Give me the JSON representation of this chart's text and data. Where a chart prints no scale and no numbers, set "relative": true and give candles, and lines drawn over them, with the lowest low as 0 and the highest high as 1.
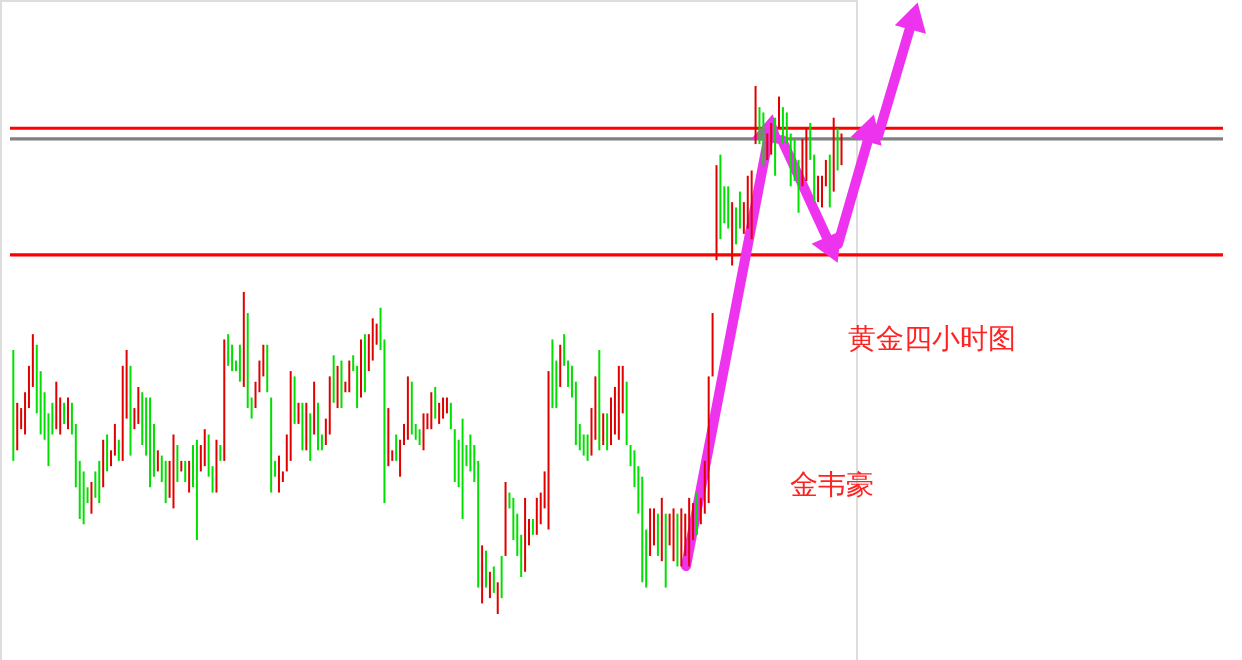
{
  "chart_data": {
    "type": "candlestick",
    "relative": true,
    "categories": [
      null,
      null,
      null,
      null,
      null,
      null,
      null,
      null,
      null,
      null,
      null,
      null,
      null,
      null,
      null,
      null,
      null,
      null,
      null,
      null,
      null,
      null,
      null,
      null,
      null,
      null,
      null,
      null,
      null,
      null,
      null,
      null,
      null,
      null,
      null,
      null,
      null,
      null,
      null,
      null,
      null,
      null,
      null,
      null,
      null,
      null,
      null,
      null,
      null,
      null,
      null,
      null,
      null,
      null,
      null,
      null,
      null,
      null,
      null,
      null,
      null,
      null,
      null,
      null,
      null,
      null,
      null,
      null,
      null,
      null,
      null,
      null,
      null,
      null,
      null,
      null,
      null,
      null,
      null,
      null,
      null,
      null,
      null,
      null,
      null,
      null,
      null,
      null,
      null,
      null,
      null,
      null,
      null,
      null,
      null,
      null,
      null,
      null,
      null,
      null,
      null,
      null,
      null,
      null,
      null,
      null,
      null,
      null,
      null,
      null,
      null,
      null,
      null,
      null,
      null,
      null,
      null,
      null,
      null,
      null,
      null,
      null,
      null,
      null,
      null,
      null,
      null,
      null,
      null,
      null,
      null,
      null,
      null,
      null,
      null,
      null,
      null,
      null,
      null,
      null,
      null,
      null,
      null,
      null,
      null,
      null,
      null,
      null,
      null,
      null,
      null,
      null,
      null,
      null,
      null,
      null,
      null,
      null,
      null,
      null,
      null,
      null,
      null,
      null,
      null,
      null,
      null,
      null,
      null,
      null,
      null,
      null,
      null,
      null,
      null,
      null,
      null,
      null,
      null,
      null,
      null,
      null,
      null,
      null,
      null,
      null,
      null,
      null,
      null,
      null,
      null,
      null,
      null,
      null,
      null,
      null,
      null,
      null,
      null,
      null,
      null,
      null,
      null,
      null,
      null,
      null,
      null,
      null,
      null,
      null,
      null,
      null,
      null
    ],
    "ohlc": [
      [
        0.29,
        0.5,
        0.29,
        0.5
      ],
      [
        0.4,
        0.4,
        0.31,
        0.31
      ],
      [
        0.39,
        0.39,
        0.35,
        0.35
      ],
      [
        0.42,
        0.42,
        0.34,
        0.34
      ],
      [
        0.47,
        0.47,
        0.39,
        0.39
      ],
      [
        0.53,
        0.53,
        0.43,
        0.43
      ],
      [
        0.38,
        0.51,
        0.38,
        0.51
      ],
      [
        0.34,
        0.46,
        0.34,
        0.46
      ],
      [
        0.33,
        0.42,
        0.33,
        0.42
      ],
      [
        0.28,
        0.38,
        0.28,
        0.38
      ],
      [
        0.34,
        0.4,
        0.34,
        0.4
      ],
      [
        0.44,
        0.44,
        0.35,
        0.35
      ],
      [
        0.41,
        0.41,
        0.34,
        0.34
      ],
      [
        0.36,
        0.4,
        0.36,
        0.4
      ],
      [
        0.41,
        0.41,
        0.35,
        0.35
      ],
      [
        0.34,
        0.4,
        0.34,
        0.4
      ],
      [
        0.24,
        0.36,
        0.24,
        0.36
      ],
      [
        0.18,
        0.29,
        0.18,
        0.29
      ],
      [
        0.17,
        0.27,
        0.17,
        0.27
      ],
      [
        0.21,
        0.24,
        0.21,
        0.24
      ],
      [
        0.25,
        0.25,
        0.19,
        0.19
      ],
      [
        0.22,
        0.27,
        0.22,
        0.27
      ],
      [
        0.21,
        0.29,
        0.21,
        0.29
      ],
      [
        0.33,
        0.33,
        0.24,
        0.24
      ],
      [
        0.27,
        0.34,
        0.27,
        0.34
      ],
      [
        0.31,
        0.31,
        0.28,
        0.28
      ],
      [
        0.36,
        0.36,
        0.3,
        0.3
      ],
      [
        0.29,
        0.33,
        0.29,
        0.33
      ],
      [
        0.47,
        0.47,
        0.29,
        0.29
      ],
      [
        0.5,
        0.5,
        0.37,
        0.37
      ],
      [
        0.3,
        0.47,
        0.3,
        0.47
      ],
      [
        0.39,
        0.39,
        0.35,
        0.35
      ],
      [
        0.43,
        0.43,
        0.36,
        0.36
      ],
      [
        0.32,
        0.42,
        0.32,
        0.42
      ],
      [
        0.3,
        0.41,
        0.3,
        0.41
      ],
      [
        0.24,
        0.41,
        0.24,
        0.41
      ],
      [
        0.26,
        0.36,
        0.26,
        0.36
      ],
      [
        0.31,
        0.31,
        0.27,
        0.27
      ],
      [
        0.25,
        0.3,
        0.25,
        0.3
      ],
      [
        0.21,
        0.29,
        0.21,
        0.29
      ],
      [
        0.29,
        0.29,
        0.22,
        0.22
      ],
      [
        0.34,
        0.34,
        0.2,
        0.2
      ],
      [
        0.25,
        0.32,
        0.25,
        0.32
      ],
      [
        0.29,
        0.29,
        0.27,
        0.27
      ],
      [
        0.25,
        0.29,
        0.25,
        0.29
      ],
      [
        0.29,
        0.29,
        0.23,
        0.23
      ],
      [
        0.24,
        0.32,
        0.24,
        0.32
      ],
      [
        0.14,
        0.33,
        0.14,
        0.33
      ],
      [
        0.32,
        0.32,
        0.27,
        0.27
      ],
      [
        0.35,
        0.35,
        0.28,
        0.28
      ],
      [
        0.26,
        0.34,
        0.26,
        0.34
      ],
      [
        0.23,
        0.28,
        0.23,
        0.28
      ],
      [
        0.33,
        0.33,
        0.23,
        0.23
      ],
      [
        0.29,
        0.32,
        0.29,
        0.32
      ],
      [
        0.52,
        0.52,
        0.29,
        0.29
      ],
      [
        0.47,
        0.53,
        0.47,
        0.53
      ],
      [
        0.46,
        0.51,
        0.46,
        0.51
      ],
      [
        0.46,
        0.48,
        0.46,
        0.48
      ],
      [
        0.44,
        0.51,
        0.44,
        0.51
      ],
      [
        0.61,
        0.61,
        0.43,
        0.43
      ],
      [
        0.39,
        0.57,
        0.39,
        0.57
      ],
      [
        0.37,
        0.41,
        0.37,
        0.41
      ],
      [
        0.44,
        0.44,
        0.39,
        0.39
      ],
      [
        0.48,
        0.48,
        0.42,
        0.42
      ],
      [
        0.51,
        0.51,
        0.45,
        0.45
      ],
      [
        0.42,
        0.51,
        0.42,
        0.51
      ],
      [
        0.23,
        0.41,
        0.23,
        0.41
      ],
      [
        0.26,
        0.29,
        0.26,
        0.29
      ],
      [
        0.3,
        0.3,
        0.23,
        0.23
      ],
      [
        0.27,
        0.27,
        0.25,
        0.25
      ],
      [
        0.34,
        0.34,
        0.27,
        0.27
      ],
      [
        0.46,
        0.46,
        0.29,
        0.29
      ],
      [
        0.36,
        0.45,
        0.36,
        0.45
      ],
      [
        0.4,
        0.4,
        0.36,
        0.36
      ],
      [
        0.31,
        0.4,
        0.31,
        0.4
      ],
      [
        0.4,
        0.4,
        0.31,
        0.31
      ],
      [
        0.29,
        0.38,
        0.29,
        0.38
      ],
      [
        0.44,
        0.44,
        0.34,
        0.34
      ],
      [
        0.31,
        0.4,
        0.31,
        0.4
      ],
      [
        0.31,
        0.34,
        0.31,
        0.34
      ],
      [
        0.37,
        0.37,
        0.32,
        0.32
      ],
      [
        0.45,
        0.45,
        0.34,
        0.34
      ],
      [
        0.4,
        0.49,
        0.4,
        0.49
      ],
      [
        0.47,
        0.47,
        0.39,
        0.39
      ],
      [
        0.39,
        0.48,
        0.39,
        0.48
      ],
      [
        0.44,
        0.44,
        0.42,
        0.42
      ],
      [
        0.48,
        0.48,
        0.42,
        0.42
      ],
      [
        0.46,
        0.49,
        0.46,
        0.49
      ],
      [
        0.39,
        0.47,
        0.39,
        0.47
      ],
      [
        0.52,
        0.52,
        0.41,
        0.41
      ],
      [
        0.42,
        0.53,
        0.42,
        0.53
      ],
      [
        0.53,
        0.53,
        0.46,
        0.46
      ],
      [
        0.56,
        0.56,
        0.48,
        0.48
      ],
      [
        0.55,
        0.55,
        0.51,
        0.51
      ],
      [
        0.5,
        0.58,
        0.5,
        0.58
      ],
      [
        0.21,
        0.52,
        0.21,
        0.52
      ],
      [
        0.39,
        0.39,
        0.28,
        0.28
      ],
      [
        0.31,
        0.31,
        0.29,
        0.29
      ],
      [
        0.29,
        0.34,
        0.29,
        0.34
      ],
      [
        0.33,
        0.33,
        0.26,
        0.26
      ],
      [
        0.36,
        0.36,
        0.32,
        0.32
      ],
      [
        0.45,
        0.45,
        0.33,
        0.33
      ],
      [
        0.34,
        0.44,
        0.34,
        0.44
      ],
      [
        0.33,
        0.36,
        0.33,
        0.36
      ],
      [
        0.32,
        0.35,
        0.32,
        0.35
      ],
      [
        0.38,
        0.38,
        0.31,
        0.31
      ],
      [
        0.38,
        0.38,
        0.35,
        0.35
      ],
      [
        0.42,
        0.42,
        0.35,
        0.35
      ],
      [
        0.37,
        0.43,
        0.37,
        0.43
      ],
      [
        0.4,
        0.4,
        0.36,
        0.36
      ],
      [
        0.41,
        0.41,
        0.37,
        0.37
      ],
      [
        0.41,
        0.41,
        0.38,
        0.38
      ],
      [
        0.35,
        0.4,
        0.35,
        0.4
      ],
      [
        0.25,
        0.35,
        0.25,
        0.35
      ],
      [
        0.24,
        0.33,
        0.24,
        0.33
      ],
      [
        0.18,
        0.37,
        0.18,
        0.37
      ],
      [
        0.28,
        0.32,
        0.28,
        0.32
      ],
      [
        0.27,
        0.34,
        0.27,
        0.34
      ],
      [
        0.25,
        0.32,
        0.25,
        0.32
      ],
      [
        0.05,
        0.29,
        0.05,
        0.29
      ],
      [
        0.13,
        0.13,
        0.02,
        0.02
      ],
      [
        0.05,
        0.12,
        0.05,
        0.12
      ],
      [
        0.08,
        0.08,
        0.03,
        0.03
      ],
      [
        0.04,
        0.09,
        0.04,
        0.09
      ],
      [
        0.06,
        0.06,
        0.0,
        0.0
      ],
      [
        0.03,
        0.11,
        0.03,
        0.11
      ],
      [
        0.25,
        0.25,
        0.11,
        0.11
      ],
      [
        0.2,
        0.23,
        0.2,
        0.23
      ],
      [
        0.14,
        0.22,
        0.14,
        0.22
      ],
      [
        0.11,
        0.19,
        0.11,
        0.19
      ],
      [
        0.07,
        0.15,
        0.07,
        0.15
      ],
      [
        0.22,
        0.22,
        0.08,
        0.08
      ],
      [
        0.18,
        0.18,
        0.13,
        0.13
      ],
      [
        0.15,
        0.18,
        0.15,
        0.18
      ],
      [
        0.22,
        0.22,
        0.15,
        0.15
      ],
      [
        0.23,
        0.23,
        0.17,
        0.17
      ],
      [
        0.27,
        0.27,
        0.2,
        0.2
      ],
      [
        0.46,
        0.46,
        0.16,
        0.16
      ],
      [
        0.39,
        0.52,
        0.39,
        0.52
      ],
      [
        0.39,
        0.48,
        0.39,
        0.48
      ],
      [
        0.51,
        0.51,
        0.43,
        0.43
      ],
      [
        0.47,
        0.53,
        0.47,
        0.53
      ],
      [
        0.43,
        0.48,
        0.43,
        0.48
      ],
      [
        0.41,
        0.47,
        0.41,
        0.47
      ],
      [
        0.32,
        0.44,
        0.32,
        0.44
      ],
      [
        0.31,
        0.36,
        0.31,
        0.36
      ],
      [
        0.3,
        0.34,
        0.3,
        0.34
      ],
      [
        0.29,
        0.34,
        0.29,
        0.34
      ],
      [
        0.39,
        0.39,
        0.3,
        0.3
      ],
      [
        0.45,
        0.45,
        0.33,
        0.33
      ],
      [
        0.31,
        0.5,
        0.31,
        0.5
      ],
      [
        0.38,
        0.38,
        0.32,
        0.32
      ],
      [
        0.31,
        0.38,
        0.31,
        0.38
      ],
      [
        0.41,
        0.41,
        0.32,
        0.32
      ],
      [
        0.43,
        0.43,
        0.34,
        0.34
      ],
      [
        0.47,
        0.47,
        0.33,
        0.33
      ],
      [
        0.47,
        0.47,
        0.38,
        0.38
      ],
      [
        0.32,
        0.44,
        0.32,
        0.44
      ],
      [
        0.28,
        0.32,
        0.28,
        0.32
      ],
      [
        0.24,
        0.31,
        0.24,
        0.31
      ],
      [
        0.19,
        0.28,
        0.19,
        0.28
      ],
      [
        0.06,
        0.26,
        0.06,
        0.26
      ],
      [
        0.05,
        0.16,
        0.05,
        0.16
      ],
      [
        0.2,
        0.2,
        0.11,
        0.11
      ],
      [
        0.2,
        0.2,
        0.13,
        0.13
      ],
      [
        0.11,
        0.19,
        0.11,
        0.19
      ],
      [
        0.22,
        0.22,
        0.1,
        0.1
      ],
      [
        0.05,
        0.19,
        0.05,
        0.19
      ],
      [
        0.19,
        0.19,
        0.13,
        0.13
      ],
      [
        0.2,
        0.2,
        0.1,
        0.1
      ],
      [
        0.09,
        0.19,
        0.09,
        0.19
      ],
      [
        0.2,
        0.2,
        0.09,
        0.09
      ],
      [
        0.19,
        0.19,
        0.11,
        0.11
      ],
      [
        0.22,
        0.22,
        0.09,
        0.09
      ],
      [
        0.21,
        0.21,
        0.14,
        0.14
      ],
      [
        0.15,
        0.23,
        0.15,
        0.23
      ],
      [
        0.22,
        0.22,
        0.17,
        0.17
      ],
      [
        0.29,
        0.29,
        0.19,
        0.19
      ],
      [
        0.45,
        0.45,
        0.21,
        0.21
      ],
      [
        0.57,
        0.57,
        0.45,
        0.45
      ],
      [
        0.85,
        0.85,
        0.67,
        0.67
      ],
      [
        0.71,
        0.87,
        0.71,
        0.87
      ],
      [
        0.74,
        0.81,
        0.74,
        0.81
      ],
      [
        0.73,
        0.81,
        0.73,
        0.81
      ],
      [
        0.78,
        0.78,
        0.66,
        0.66
      ],
      [
        0.7,
        0.77,
        0.7,
        0.77
      ],
      [
        0.73,
        0.8,
        0.73,
        0.8
      ],
      [
        0.78,
        0.78,
        0.72,
        0.72
      ],
      [
        0.83,
        0.83,
        0.73,
        0.73
      ],
      [
        0.84,
        0.84,
        0.71,
        0.71
      ],
      [
        1.0,
        1.0,
        0.89,
        0.89
      ],
      [
        0.89,
        0.96,
        0.89,
        0.96
      ],
      [
        0.85,
        0.95,
        0.85,
        0.95
      ],
      [
        0.91,
        0.91,
        0.86,
        0.86
      ],
      [
        0.93,
        0.93,
        0.87,
        0.87
      ],
      [
        0.83,
        0.94,
        0.83,
        0.94
      ],
      [
        0.98,
        0.98,
        0.92,
        0.92
      ],
      [
        0.89,
        0.96,
        0.89,
        0.96
      ],
      [
        0.89,
        0.95,
        0.89,
        0.95
      ],
      [
        0.81,
        0.91,
        0.81,
        0.91
      ],
      [
        0.82,
        0.9,
        0.82,
        0.9
      ],
      [
        0.76,
        0.86,
        0.76,
        0.86
      ],
      [
        0.9,
        0.9,
        0.81,
        0.81
      ],
      [
        0.92,
        0.92,
        0.82,
        0.82
      ],
      [
        0.86,
        0.93,
        0.86,
        0.93
      ],
      [
        0.78,
        0.87,
        0.78,
        0.87
      ],
      [
        0.83,
        0.83,
        0.78,
        0.78
      ],
      [
        0.83,
        0.83,
        0.77,
        0.77
      ],
      [
        0.86,
        0.86,
        0.81,
        0.81
      ],
      [
        0.77,
        0.87,
        0.77,
        0.87
      ],
      [
        0.94,
        0.94,
        0.8,
        0.8
      ],
      [
        0.84,
        0.92,
        0.84,
        0.92
      ],
      [
        0.91,
        0.91,
        0.85,
        0.85
      ]
    ],
    "colors": [
      "#00e000",
      "#e00000",
      "#e00000",
      "#e00000",
      "#e00000",
      "#e00000",
      "#00e000",
      "#00e000",
      "#00e000",
      "#00e000",
      "#00e000",
      "#e00000",
      "#e00000",
      "#00e000",
      "#e00000",
      "#00e000",
      "#00e000",
      "#00e000",
      "#00e000",
      "#00e000",
      "#e00000",
      "#00e000",
      "#00e000",
      "#e00000",
      "#00e000",
      "#e00000",
      "#e00000",
      "#00e000",
      "#e00000",
      "#e00000",
      "#00e000",
      "#e00000",
      "#e00000",
      "#00e000",
      "#00e000",
      "#00e000",
      "#00e000",
      "#e00000",
      "#00e000",
      "#00e000",
      "#e00000",
      "#e00000",
      "#00e000",
      "#e00000",
      "#00e000",
      "#e00000",
      "#00e000",
      "#00e000",
      "#e00000",
      "#e00000",
      "#00e000",
      "#00e000",
      "#e00000",
      "#00e000",
      "#e00000",
      "#00e000",
      "#00e000",
      "#00e000",
      "#00e000",
      "#e00000",
      "#00e000",
      "#00e000",
      "#e00000",
      "#e00000",
      "#e00000",
      "#00e000",
      "#00e000",
      "#00e000",
      "#e00000",
      "#e00000",
      "#e00000",
      "#e00000",
      "#00e000",
      "#e00000",
      "#00e000",
      "#e00000",
      "#00e000",
      "#e00000",
      "#00e000",
      "#00e000",
      "#e00000",
      "#e00000",
      "#00e000",
      "#e00000",
      "#00e000",
      "#e00000",
      "#e00000",
      "#00e000",
      "#00e000",
      "#e00000",
      "#00e000",
      "#e00000",
      "#e00000",
      "#e00000",
      "#00e000",
      "#00e000",
      "#e00000",
      "#e00000",
      "#00e000",
      "#e00000",
      "#e00000",
      "#e00000",
      "#00e000",
      "#00e000",
      "#00e000",
      "#e00000",
      "#e00000",
      "#e00000",
      "#00e000",
      "#e00000",
      "#e00000",
      "#e00000",
      "#00e000",
      "#00e000",
      "#00e000",
      "#00e000",
      "#00e000",
      "#00e000",
      "#00e000",
      "#00e000",
      "#e00000",
      "#00e000",
      "#e00000",
      "#00e000",
      "#e00000",
      "#00e000",
      "#e00000",
      "#00e000",
      "#00e000",
      "#00e000",
      "#00e000",
      "#e00000",
      "#e00000",
      "#00e000",
      "#e00000",
      "#e00000",
      "#e00000",
      "#e00000",
      "#00e000",
      "#00e000",
      "#e00000",
      "#00e000",
      "#00e000",
      "#00e000",
      "#00e000",
      "#00e000",
      "#00e000",
      "#00e000",
      "#e00000",
      "#e00000",
      "#00e000",
      "#e00000",
      "#00e000",
      "#e00000",
      "#e00000",
      "#e00000",
      "#e00000",
      "#00e000",
      "#00e000",
      "#00e000",
      "#00e000",
      "#00e000",
      "#00e000",
      "#e00000",
      "#e00000",
      "#00e000",
      "#e00000",
      "#00e000",
      "#e00000",
      "#e00000",
      "#00e000",
      "#e00000",
      "#e00000",
      "#e00000",
      "#e00000",
      "#00e000",
      "#e00000",
      "#e00000",
      "#e00000",
      "#e00000",
      "#e00000",
      "#00e000",
      "#00e000",
      "#00e000",
      "#e00000",
      "#00e000",
      "#00e000",
      "#e00000",
      "#e00000",
      "#e00000",
      "#e00000",
      "#00e000",
      "#00e000",
      "#e00000",
      "#e00000",
      "#00e000",
      "#e00000",
      "#00e000",
      "#00e000",
      "#00e000",
      "#00e000",
      "#00e000",
      "#e00000",
      "#e00000",
      "#00e000",
      "#00e000",
      "#e00000",
      "#e00000",
      "#e00000",
      "#00e000",
      "#e00000",
      "#00e000",
      "#e00000"
    ],
    "ref_lines": [
      {
        "axis": "y",
        "value": 0.92,
        "color": "#ff0000"
      },
      {
        "axis": "y",
        "value": 0.9,
        "color": "#808080"
      },
      {
        "axis": "y",
        "value": 0.68,
        "color": "#ff0000"
      }
    ],
    "annotations": [
      "黄金四小时图",
      "金韦豪"
    ]
  }
}
